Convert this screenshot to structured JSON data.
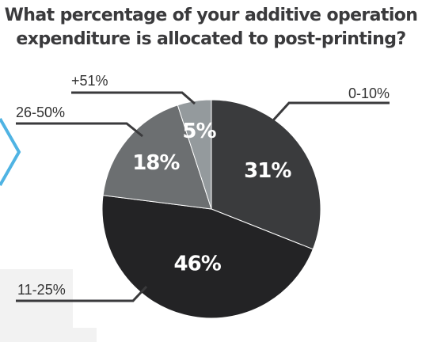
{
  "title": {
    "line1": "What percentage of your additive operation",
    "line2": "expenditure is allocated to post-printing?"
  },
  "chart_data": {
    "type": "pie",
    "title": "What percentage of your additive operation expenditure is allocated to post-printing?",
    "slices": [
      {
        "category": "0-10%",
        "value": 31,
        "label": "31%",
        "color": "#3a3b3d"
      },
      {
        "category": "11-25%",
        "value": 46,
        "label": "46%",
        "color": "#232325"
      },
      {
        "category": "26-50%",
        "value": 18,
        "label": "18%",
        "color": "#6c6f71"
      },
      {
        "category": "+51%",
        "value": 5,
        "label": "5%",
        "color": "#949a9d"
      }
    ],
    "start_angle_deg": 0,
    "direction": "clockwise"
  },
  "colors": {
    "title": "#3a3a3c",
    "leader": "#3a3a3c",
    "accent": "#4fb3e3",
    "background_shape": "#f2f2f2"
  }
}
